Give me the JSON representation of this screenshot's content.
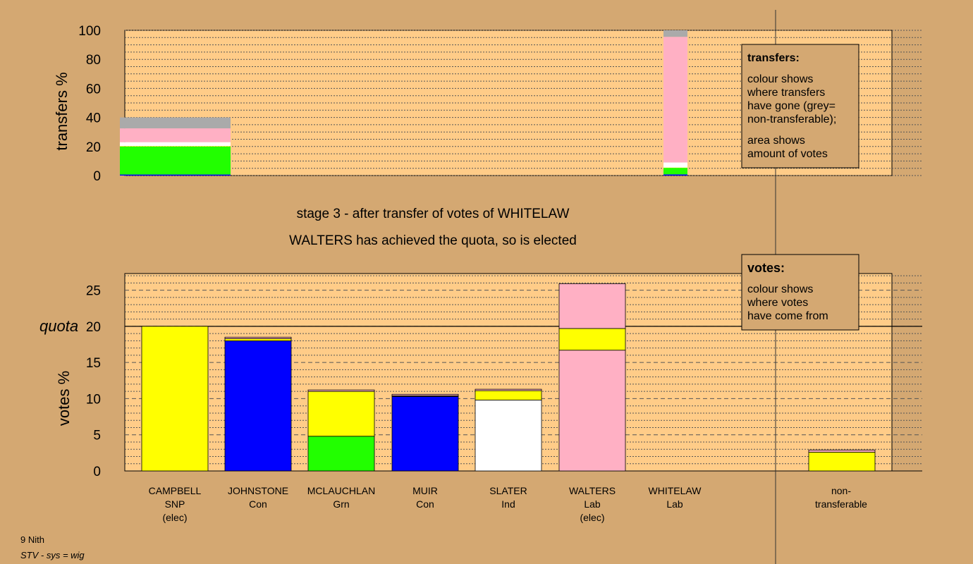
{
  "footer": {
    "line1": "9 Nith",
    "line2": "STV - sys = wig"
  },
  "captions": {
    "stage": "stage 3 - after transfer of votes of WHITELAW",
    "elected": "WALTERS has achieved the quota, so is elected"
  },
  "colors": {
    "background": "#d4a872",
    "plot_bg": "#ffcc88",
    "yellow": "#ffff00",
    "blue": "#0000ff",
    "green": "#22ff00",
    "white": "#ffffff",
    "pink": "#ffb0c4",
    "grey": "#aaaaaa",
    "navy": "#000080"
  },
  "candidates": [
    {
      "name": "CAMPBELL",
      "party": "SNP",
      "note": "(elec)"
    },
    {
      "name": "JOHNSTONE",
      "party": "Con",
      "note": ""
    },
    {
      "name": "MCLAUCHLAN",
      "party": "Grn",
      "note": ""
    },
    {
      "name": "MUIR",
      "party": "Con",
      "note": ""
    },
    {
      "name": "SLATER",
      "party": "Ind",
      "note": ""
    },
    {
      "name": "WALTERS",
      "party": "Lab",
      "note": "(elec)"
    },
    {
      "name": "WHITELAW",
      "party": "Lab",
      "note": ""
    }
  ],
  "nontransferable": {
    "line1": "non-",
    "line2": "transferable"
  },
  "chart_data": [
    {
      "type": "bar",
      "stacked": true,
      "ylabel": "transfers %",
      "ylim": [
        0,
        100
      ],
      "yticks": [
        0,
        20,
        40,
        60,
        80,
        100
      ],
      "bars": [
        {
          "label": "CAMPBELL transfers",
          "segments": [
            {
              "color": "blue",
              "value": 0.7
            },
            {
              "color": "green",
              "value": 19.3
            },
            {
              "color": "yellow",
              "value": 0.3
            },
            {
              "color": "white",
              "value": 2.7
            },
            {
              "color": "pink",
              "value": 9.5
            },
            {
              "color": "grey",
              "value": 7.5
            }
          ]
        },
        {
          "label": "WHITELAW transfers",
          "segments": [
            {
              "color": "blue",
              "value": 0.8
            },
            {
              "color": "green",
              "value": 4.5
            },
            {
              "color": "yellow",
              "value": 0.2
            },
            {
              "color": "white",
              "value": 3.5
            },
            {
              "color": "pink",
              "value": 86.5
            },
            {
              "color": "grey",
              "value": 4.5
            }
          ]
        }
      ],
      "legend": {
        "title": "transfers:",
        "lines1": [
          "colour shows",
          "where transfers",
          "have gone (grey=",
          "non-transferable);"
        ],
        "lines2": [
          "area shows",
          "amount of votes"
        ]
      }
    },
    {
      "type": "bar",
      "stacked": true,
      "ylabel": "votes %",
      "ylim": [
        0,
        25
      ],
      "yticks": [
        0,
        5,
        10,
        15,
        20,
        25
      ],
      "quota": {
        "label": "quota",
        "value": 20
      },
      "bars": [
        {
          "label": "CAMPBELL",
          "segments": [
            {
              "color": "yellow",
              "value": 20.0
            }
          ]
        },
        {
          "label": "JOHNSTONE",
          "segments": [
            {
              "color": "blue",
              "value": 18.0
            },
            {
              "color": "yellow",
              "value": 0.3
            },
            {
              "color": "pink",
              "value": 0.2
            }
          ]
        },
        {
          "label": "MCLAUCHLAN",
          "segments": [
            {
              "color": "green",
              "value": 4.8
            },
            {
              "color": "yellow",
              "value": 6.2
            },
            {
              "color": "pink",
              "value": 0.2
            }
          ]
        },
        {
          "label": "MUIR",
          "segments": [
            {
              "color": "blue",
              "value": 10.3
            },
            {
              "color": "yellow",
              "value": 0.1
            },
            {
              "color": "pink",
              "value": 0.2
            }
          ]
        },
        {
          "label": "SLATER",
          "segments": [
            {
              "color": "white",
              "value": 9.8
            },
            {
              "color": "yellow",
              "value": 1.3
            },
            {
              "color": "pink",
              "value": 0.2
            }
          ]
        },
        {
          "label": "WALTERS",
          "segments": [
            {
              "color": "pink",
              "value": 16.7
            },
            {
              "color": "yellow",
              "value": 3.0
            },
            {
              "color": "pink",
              "value": 6.2
            }
          ]
        },
        {
          "label": "WHITELAW",
          "segments": []
        },
        {
          "label": "non-transferable",
          "segments": [
            {
              "color": "yellow",
              "value": 2.6
            },
            {
              "color": "pink",
              "value": 0.3
            }
          ]
        }
      ],
      "legend": {
        "title": "votes:",
        "lines1": [
          "colour shows",
          "where votes",
          "have come from"
        ]
      }
    }
  ]
}
